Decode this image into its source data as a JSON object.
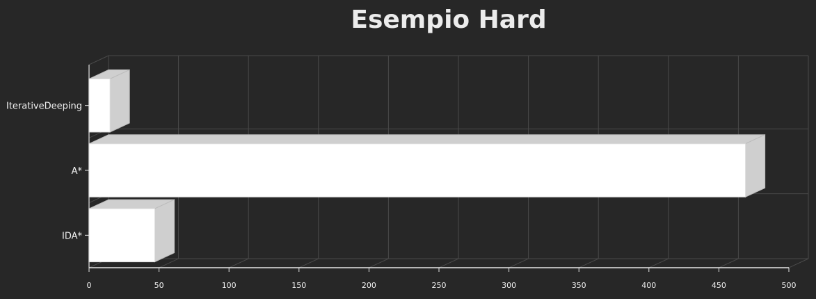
{
  "chart_data": {
    "type": "bar",
    "orientation": "horizontal",
    "style": "3d-sketch",
    "title": "Esempio Hard",
    "xlabel": "",
    "ylabel": "",
    "categories": [
      "IterativeDeeping",
      "A*",
      "IDA*"
    ],
    "values": [
      15,
      469,
      47
    ],
    "xlim": [
      0,
      500
    ],
    "xticks": [
      0,
      50,
      100,
      150,
      200,
      250,
      300,
      350,
      400,
      450,
      500
    ],
    "grid": true,
    "legend": "none"
  },
  "colors": {
    "background": "#272727",
    "bar_front": "#ffffff",
    "bar_side": "#cfcfcf",
    "grid": "#4a4a4a",
    "text": "#f2f2f2"
  }
}
